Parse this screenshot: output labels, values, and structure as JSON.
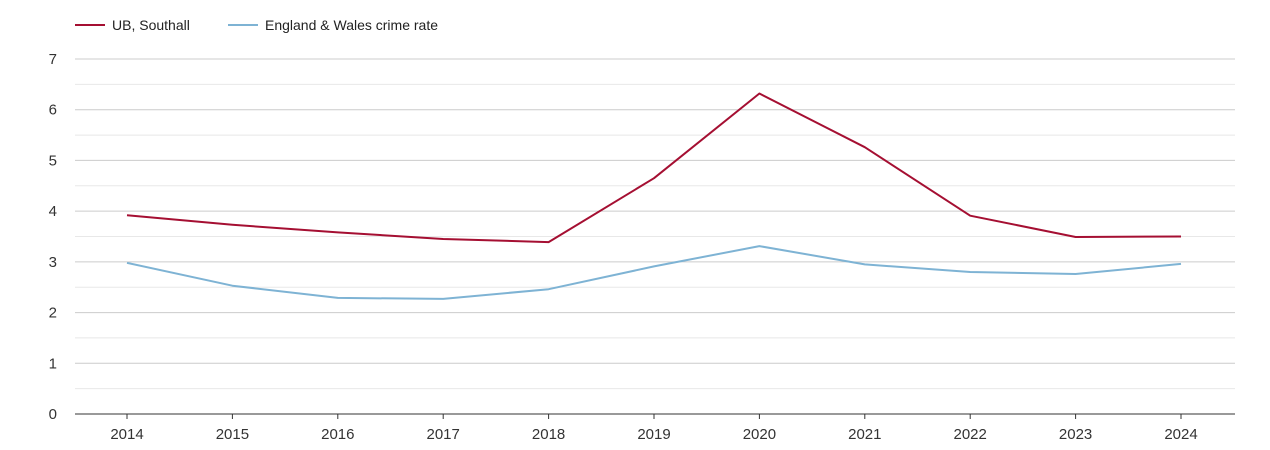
{
  "chart_data": {
    "type": "line",
    "title": "",
    "xlabel": "",
    "ylabel": "",
    "x": [
      "2014",
      "2015",
      "2016",
      "2017",
      "2018",
      "2019",
      "2020",
      "2021",
      "2022",
      "2023",
      "2024"
    ],
    "y_ticks": [
      "0",
      "1",
      "2",
      "3",
      "4",
      "5",
      "6",
      "7"
    ],
    "ylim": [
      0,
      7
    ],
    "grid": true,
    "minor_grid": true,
    "legend_position": "top-left",
    "series": [
      {
        "name": "UB, Southall",
        "color": "#a50f32",
        "values": [
          3.92,
          3.73,
          3.58,
          3.45,
          3.39,
          4.65,
          6.32,
          5.26,
          3.91,
          3.49,
          3.5
        ]
      },
      {
        "name": "England & Wales crime rate",
        "color": "#7eb3d4",
        "values": [
          2.98,
          2.53,
          2.29,
          2.27,
          2.46,
          2.91,
          3.31,
          2.95,
          2.8,
          2.76,
          2.96
        ]
      }
    ]
  }
}
